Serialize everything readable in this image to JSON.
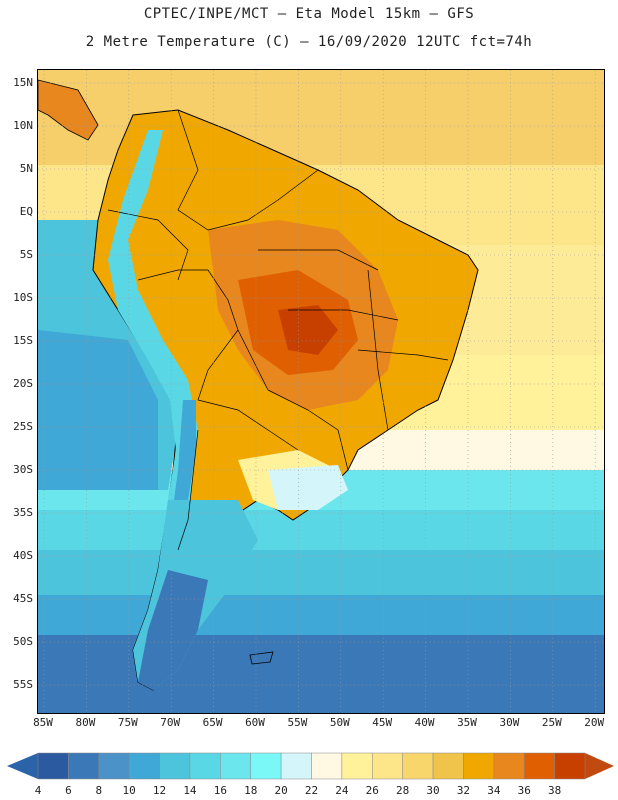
{
  "header": {
    "line1": "CPTEC/INPE/MCT –  Eta Model 15km – GFS",
    "line2": "2 Metre Temperature (C) – 16/09/2020 12UTC fct=74h"
  },
  "map": {
    "lat_labels": [
      "15N",
      "10N",
      "5N",
      "EQ",
      "5S",
      "10S",
      "15S",
      "20S",
      "25S",
      "30S",
      "35S",
      "40S",
      "45S",
      "50S",
      "55S"
    ],
    "lon_labels": [
      "85W",
      "80W",
      "75W",
      "70W",
      "65W",
      "60W",
      "55W",
      "50W",
      "45W",
      "40W",
      "35W",
      "30W",
      "25W",
      "20W"
    ]
  },
  "colorbar": {
    "labels": [
      "4",
      "6",
      "8",
      "10",
      "12",
      "14",
      "16",
      "18",
      "20",
      "22",
      "24",
      "26",
      "28",
      "30",
      "32",
      "34",
      "36",
      "38"
    ],
    "colors": [
      "#2c5aa0",
      "#3a78b8",
      "#4a92c8",
      "#3fa8d6",
      "#4cc4dc",
      "#5ad7e4",
      "#6ae6ec",
      "#7af8f8",
      "#d4f6fb",
      "#fff8e2",
      "#fff29a",
      "#fde58a",
      "#f8d66b",
      "#f0c44a",
      "#f0a800",
      "#e8871d",
      "#e05f00",
      "#c84000"
    ],
    "left_arrow_color": "#2b63a8",
    "right_arrow_color": "#c04a10"
  }
}
